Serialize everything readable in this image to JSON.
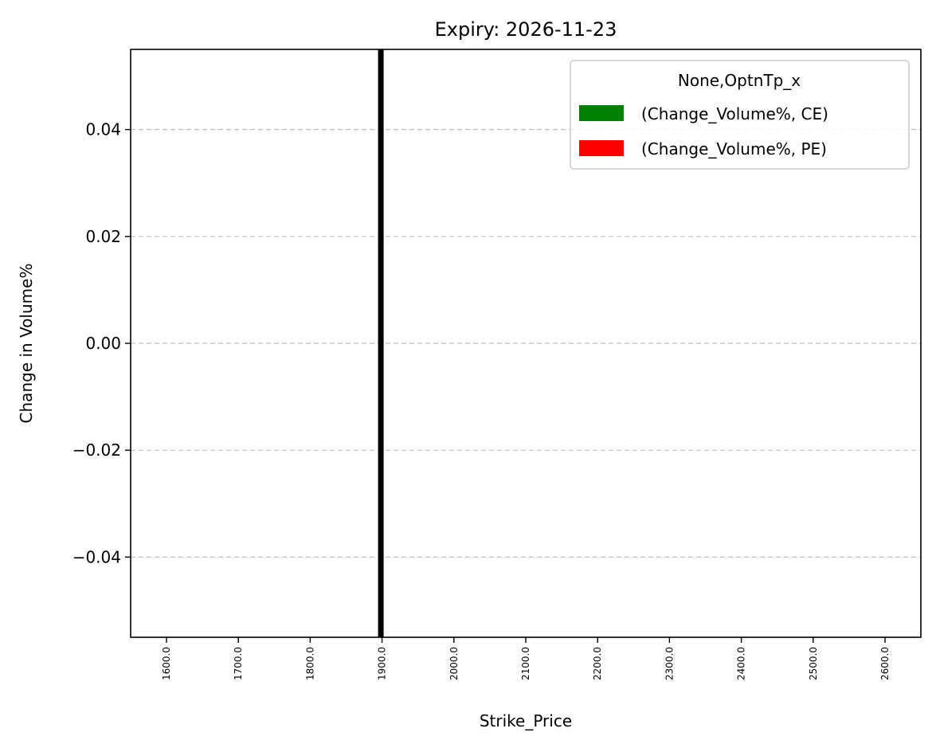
{
  "chart_data": {
    "type": "bar",
    "title": "Expiry: 2026-11-23",
    "xlabel": "Strike_Price",
    "ylabel": "Change in Volume%",
    "categories": [
      "1600.0",
      "1700.0",
      "1800.0",
      "1900.0",
      "2000.0",
      "2100.0",
      "2200.0",
      "2300.0",
      "2400.0",
      "2500.0",
      "2600.0"
    ],
    "series": [
      {
        "name": "(Change_Volume%, CE)",
        "color": "#008000",
        "values": [
          0,
          0,
          0,
          0,
          0,
          0,
          0,
          0,
          0,
          0,
          0
        ]
      },
      {
        "name": "(Change_Volume%, PE)",
        "color": "#ff0000",
        "values": [
          0,
          0,
          0,
          0,
          0,
          0,
          0,
          0,
          0,
          0,
          0
        ]
      }
    ],
    "ylim": [
      -0.055,
      0.055
    ],
    "yticks": [
      -0.04,
      -0.02,
      0.0,
      0.02,
      0.04
    ],
    "ytick_labels": [
      "−0.04",
      "−0.02",
      "0.00",
      "0.02",
      "0.04"
    ],
    "grid": "y dashed",
    "reference_line": {
      "x": "1900.0",
      "color": "#000000"
    },
    "legend": {
      "title": "None,OptnTp_x",
      "position": "top-right"
    }
  }
}
